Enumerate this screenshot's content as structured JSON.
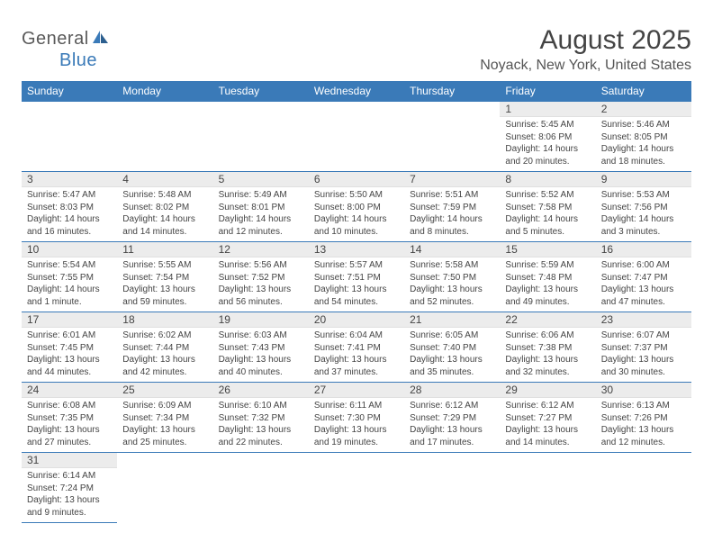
{
  "logo": {
    "text_gray": "General",
    "text_blue": "Blue"
  },
  "title": "August 2025",
  "location": "Noyack, New York, United States",
  "colors": {
    "header_bg": "#3a7ab8",
    "header_text": "#ffffff",
    "daynum_bg": "#ececec",
    "border": "#3a7ab8",
    "body_text": "#444444"
  },
  "weekdays": [
    "Sunday",
    "Monday",
    "Tuesday",
    "Wednesday",
    "Thursday",
    "Friday",
    "Saturday"
  ],
  "days": {
    "1": {
      "sunrise": "5:45 AM",
      "sunset": "8:06 PM",
      "daylight": "14 hours and 20 minutes."
    },
    "2": {
      "sunrise": "5:46 AM",
      "sunset": "8:05 PM",
      "daylight": "14 hours and 18 minutes."
    },
    "3": {
      "sunrise": "5:47 AM",
      "sunset": "8:03 PM",
      "daylight": "14 hours and 16 minutes."
    },
    "4": {
      "sunrise": "5:48 AM",
      "sunset": "8:02 PM",
      "daylight": "14 hours and 14 minutes."
    },
    "5": {
      "sunrise": "5:49 AM",
      "sunset": "8:01 PM",
      "daylight": "14 hours and 12 minutes."
    },
    "6": {
      "sunrise": "5:50 AM",
      "sunset": "8:00 PM",
      "daylight": "14 hours and 10 minutes."
    },
    "7": {
      "sunrise": "5:51 AM",
      "sunset": "7:59 PM",
      "daylight": "14 hours and 8 minutes."
    },
    "8": {
      "sunrise": "5:52 AM",
      "sunset": "7:58 PM",
      "daylight": "14 hours and 5 minutes."
    },
    "9": {
      "sunrise": "5:53 AM",
      "sunset": "7:56 PM",
      "daylight": "14 hours and 3 minutes."
    },
    "10": {
      "sunrise": "5:54 AM",
      "sunset": "7:55 PM",
      "daylight": "14 hours and 1 minute."
    },
    "11": {
      "sunrise": "5:55 AM",
      "sunset": "7:54 PM",
      "daylight": "13 hours and 59 minutes."
    },
    "12": {
      "sunrise": "5:56 AM",
      "sunset": "7:52 PM",
      "daylight": "13 hours and 56 minutes."
    },
    "13": {
      "sunrise": "5:57 AM",
      "sunset": "7:51 PM",
      "daylight": "13 hours and 54 minutes."
    },
    "14": {
      "sunrise": "5:58 AM",
      "sunset": "7:50 PM",
      "daylight": "13 hours and 52 minutes."
    },
    "15": {
      "sunrise": "5:59 AM",
      "sunset": "7:48 PM",
      "daylight": "13 hours and 49 minutes."
    },
    "16": {
      "sunrise": "6:00 AM",
      "sunset": "7:47 PM",
      "daylight": "13 hours and 47 minutes."
    },
    "17": {
      "sunrise": "6:01 AM",
      "sunset": "7:45 PM",
      "daylight": "13 hours and 44 minutes."
    },
    "18": {
      "sunrise": "6:02 AM",
      "sunset": "7:44 PM",
      "daylight": "13 hours and 42 minutes."
    },
    "19": {
      "sunrise": "6:03 AM",
      "sunset": "7:43 PM",
      "daylight": "13 hours and 40 minutes."
    },
    "20": {
      "sunrise": "6:04 AM",
      "sunset": "7:41 PM",
      "daylight": "13 hours and 37 minutes."
    },
    "21": {
      "sunrise": "6:05 AM",
      "sunset": "7:40 PM",
      "daylight": "13 hours and 35 minutes."
    },
    "22": {
      "sunrise": "6:06 AM",
      "sunset": "7:38 PM",
      "daylight": "13 hours and 32 minutes."
    },
    "23": {
      "sunrise": "6:07 AM",
      "sunset": "7:37 PM",
      "daylight": "13 hours and 30 minutes."
    },
    "24": {
      "sunrise": "6:08 AM",
      "sunset": "7:35 PM",
      "daylight": "13 hours and 27 minutes."
    },
    "25": {
      "sunrise": "6:09 AM",
      "sunset": "7:34 PM",
      "daylight": "13 hours and 25 minutes."
    },
    "26": {
      "sunrise": "6:10 AM",
      "sunset": "7:32 PM",
      "daylight": "13 hours and 22 minutes."
    },
    "27": {
      "sunrise": "6:11 AM",
      "sunset": "7:30 PM",
      "daylight": "13 hours and 19 minutes."
    },
    "28": {
      "sunrise": "6:12 AM",
      "sunset": "7:29 PM",
      "daylight": "13 hours and 17 minutes."
    },
    "29": {
      "sunrise": "6:12 AM",
      "sunset": "7:27 PM",
      "daylight": "13 hours and 14 minutes."
    },
    "30": {
      "sunrise": "6:13 AM",
      "sunset": "7:26 PM",
      "daylight": "13 hours and 12 minutes."
    },
    "31": {
      "sunrise": "6:14 AM",
      "sunset": "7:24 PM",
      "daylight": "13 hours and 9 minutes."
    }
  },
  "grid": [
    [
      null,
      null,
      null,
      null,
      null,
      "1",
      "2"
    ],
    [
      "3",
      "4",
      "5",
      "6",
      "7",
      "8",
      "9"
    ],
    [
      "10",
      "11",
      "12",
      "13",
      "14",
      "15",
      "16"
    ],
    [
      "17",
      "18",
      "19",
      "20",
      "21",
      "22",
      "23"
    ],
    [
      "24",
      "25",
      "26",
      "27",
      "28",
      "29",
      "30"
    ],
    [
      "31",
      null,
      null,
      null,
      null,
      null,
      null
    ]
  ],
  "labels": {
    "sunrise": "Sunrise:",
    "sunset": "Sunset:",
    "daylight": "Daylight:"
  }
}
